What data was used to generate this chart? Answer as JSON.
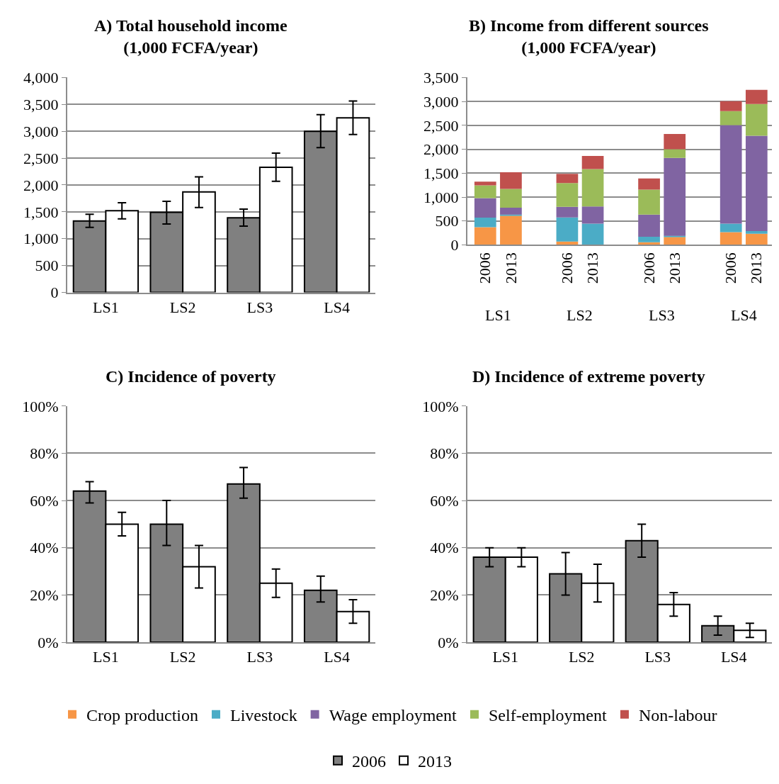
{
  "chart_data": [
    {
      "type": "bar",
      "title": "A) Total household income\n(1,000 FCFA/year)",
      "categories": [
        "LS1",
        "LS2",
        "LS3",
        "LS4"
      ],
      "ylim": [
        0,
        4000
      ],
      "yticks": [
        {
          "value": 0,
          "label": "0"
        },
        {
          "value": 500,
          "label": "500"
        },
        {
          "value": 1000,
          "label": "1,000"
        },
        {
          "value": 1500,
          "label": "1,500"
        },
        {
          "value": 2000,
          "label": "2,000"
        },
        {
          "value": 2500,
          "label": "2,500"
        },
        {
          "value": 3000,
          "label": "3,000"
        },
        {
          "value": 3500,
          "label": "3,500"
        },
        {
          "value": 4000,
          "label": "4,000"
        }
      ],
      "grid": "y",
      "legend": "bottom",
      "series": [
        {
          "name": "2006",
          "color": "#808080",
          "values": [
            1330,
            1490,
            1390,
            3000
          ],
          "errors": [
            [
              1210,
              1455
            ],
            [
              1275,
              1695
            ],
            [
              1235,
              1550
            ],
            [
              2695,
              3310
            ]
          ]
        },
        {
          "name": "2013",
          "color": "#ffffff",
          "values": [
            1520,
            1870,
            2330,
            3250
          ],
          "errors": [
            [
              1370,
              1670
            ],
            [
              1580,
              2150
            ],
            [
              2070,
              2595
            ],
            [
              2940,
              3565
            ]
          ]
        }
      ]
    },
    {
      "type": "bar",
      "stacked": true,
      "title": "B) Income from different sources\n(1,000 FCFA/year)",
      "categories": [
        "2006",
        "2013",
        "2006",
        "2013",
        "2006",
        "2013",
        "2006",
        "2013"
      ],
      "annotations": [
        "LS1",
        "LS2",
        "LS3",
        "LS4"
      ],
      "ylim": [
        0,
        3500
      ],
      "yticks": [
        {
          "value": 0,
          "label": "0"
        },
        {
          "value": 500,
          "label": "500"
        },
        {
          "value": 1000,
          "label": "1,000"
        },
        {
          "value": 1500,
          "label": "1,500"
        },
        {
          "value": 2000,
          "label": "2,000"
        },
        {
          "value": 2500,
          "label": "2,500"
        },
        {
          "value": 3000,
          "label": "3,000"
        },
        {
          "value": 3500,
          "label": "3,500"
        }
      ],
      "grid": "y",
      "legend": "bottom",
      "series": [
        {
          "name": "Crop production",
          "color": "#f79646",
          "values": [
            370,
            610,
            70,
            0,
            55,
            165,
            265,
            235
          ]
        },
        {
          "name": "Livestock",
          "color": "#4bacc6",
          "values": [
            200,
            25,
            505,
            445,
            115,
            25,
            180,
            55
          ]
        },
        {
          "name": "Wage employment",
          "color": "#8064a2",
          "values": [
            410,
            145,
            220,
            360,
            465,
            1630,
            2060,
            1995
          ]
        },
        {
          "name": "Self-employment",
          "color": "#9bbb59",
          "values": [
            265,
            390,
            500,
            780,
            520,
            180,
            295,
            660
          ]
        },
        {
          "name": "Non-labour",
          "color": "#c0504d",
          "values": [
            80,
            350,
            190,
            275,
            235,
            320,
            205,
            300
          ]
        }
      ]
    },
    {
      "type": "bar",
      "title": "C) Incidence of poverty",
      "categories": [
        "LS1",
        "LS2",
        "LS3",
        "LS4"
      ],
      "ylim": [
        0,
        100
      ],
      "yticks": [
        {
          "value": 0,
          "label": "0%"
        },
        {
          "value": 20,
          "label": "20%"
        },
        {
          "value": 40,
          "label": "40%"
        },
        {
          "value": 60,
          "label": "60%"
        },
        {
          "value": 80,
          "label": "80%"
        },
        {
          "value": 100,
          "label": "100%"
        }
      ],
      "grid": "y",
      "legend": "bottom",
      "series": [
        {
          "name": "2006",
          "color": "#808080",
          "values": [
            64,
            50,
            67,
            22
          ],
          "errors": [
            [
              59,
              68
            ],
            [
              41,
              60
            ],
            [
              61,
              74
            ],
            [
              17,
              28
            ]
          ]
        },
        {
          "name": "2013",
          "color": "#ffffff",
          "values": [
            50,
            32,
            25,
            13
          ],
          "errors": [
            [
              45,
              55
            ],
            [
              23,
              41
            ],
            [
              19,
              31
            ],
            [
              8,
              18
            ]
          ]
        }
      ]
    },
    {
      "type": "bar",
      "title": "D) Incidence of extreme poverty",
      "categories": [
        "LS1",
        "LS2",
        "LS3",
        "LS4"
      ],
      "ylim": [
        0,
        100
      ],
      "yticks": [
        {
          "value": 0,
          "label": "0%"
        },
        {
          "value": 20,
          "label": "20%"
        },
        {
          "value": 40,
          "label": "40%"
        },
        {
          "value": 60,
          "label": "60%"
        },
        {
          "value": 80,
          "label": "80%"
        },
        {
          "value": 100,
          "label": "100%"
        }
      ],
      "grid": "y",
      "legend": "bottom",
      "series": [
        {
          "name": "2006",
          "color": "#808080",
          "values": [
            36,
            29,
            43,
            7
          ],
          "errors": [
            [
              32,
              40
            ],
            [
              20,
              38
            ],
            [
              36,
              50
            ],
            [
              3,
              11
            ]
          ]
        },
        {
          "name": "2013",
          "color": "#ffffff",
          "values": [
            36,
            25,
            16,
            5
          ],
          "errors": [
            [
              32,
              40
            ],
            [
              17,
              33
            ],
            [
              11,
              21
            ],
            [
              2,
              8
            ]
          ]
        }
      ]
    }
  ]
}
